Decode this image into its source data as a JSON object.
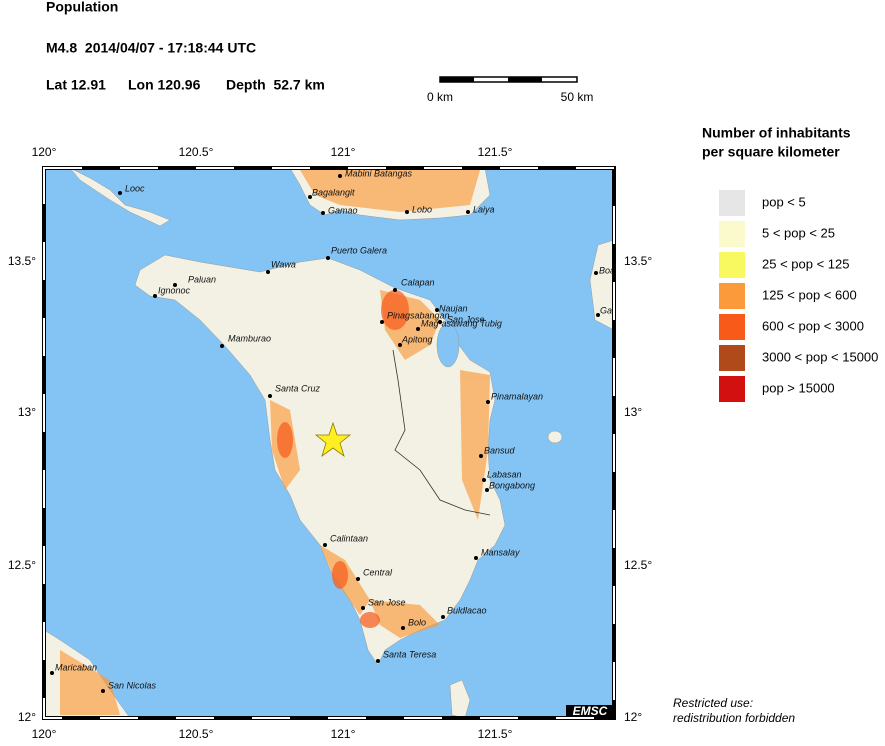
{
  "header": {
    "title": "Population",
    "event": "M4.8  2014/04/07 - 17:18:44 UTC",
    "lat": "Lat 12.91",
    "lon": "Lon 120.96",
    "depth": "Depth  52.7 km"
  },
  "scale_bar": {
    "start": "0 km",
    "end": "50 km"
  },
  "map": {
    "lon_ticks": [
      "120°",
      "120.5°",
      "121°",
      "121.5°"
    ],
    "lat_ticks": [
      "13.5°",
      "13°",
      "12.5°",
      "12°"
    ],
    "places": [
      "Looc",
      "Mabini Batangas",
      "Bagalangit",
      "Gamao",
      "Lobo",
      "Laiya",
      "Puerto Galera",
      "Wawa",
      "Paluan",
      "Ignonoc",
      "Calapan",
      "Naujan",
      "Pinagsabangan",
      "San Jose",
      "Mag-asawang Tubig",
      "Apitong",
      "Mamburao",
      "Santa Cruz",
      "Pinamalayan",
      "Bansud",
      "Labasan",
      "Bongabong",
      "Calintaan",
      "Mansalay",
      "Central",
      "San Jose",
      "Buldlacao",
      "Bolo",
      "Santa Teresa",
      "Maricaban",
      "San Nicolas",
      "Boac",
      "Gasan"
    ],
    "credit": "EMSC"
  },
  "legend": {
    "title": [
      "Number of inhabitants",
      "per square kilometer"
    ],
    "items": [
      {
        "label": "pop < 5",
        "color": "#e6e6e6"
      },
      {
        "label": "5 < pop < 25",
        "color": "#fafacc"
      },
      {
        "label": "25 < pop < 125",
        "color": "#f8f860"
      },
      {
        "label": "125 < pop < 600",
        "color": "#fb9a3a"
      },
      {
        "label": "600 < pop < 3000",
        "color": "#f85a1a"
      },
      {
        "label": "3000 < pop < 15000",
        "color": "#b04a1a"
      },
      {
        "label": "pop > 15000",
        "color": "#d21010"
      }
    ]
  },
  "footer": [
    "Restricted use:",
    "redistribution forbidden"
  ]
}
